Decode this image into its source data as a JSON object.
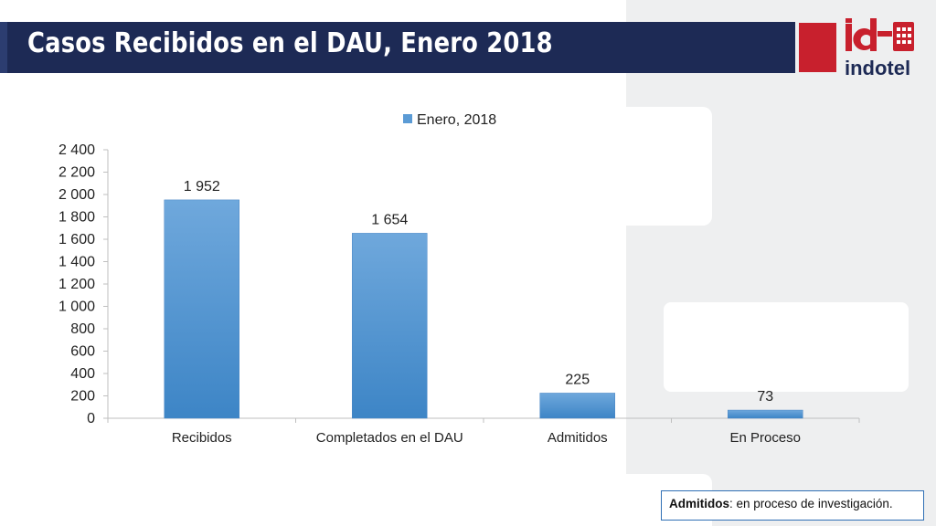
{
  "title": "Casos Recibidos en el DAU, Enero 2018",
  "logo": {
    "brand_text": "id",
    "brand_name": "indotel",
    "red": "#c8202d",
    "navy": "#1d2a55"
  },
  "footnote": {
    "term": "Admitidos",
    "definition": ": en proceso de investigación."
  },
  "chart_data": {
    "type": "bar",
    "title": "",
    "xlabel": "",
    "ylabel": "",
    "categories": [
      "Recibidos",
      "Completados en el DAU",
      "Admitidos",
      "En Proceso"
    ],
    "series": [
      {
        "name": "Enero, 2018",
        "values": [
          1952,
          1654,
          225,
          73
        ],
        "color": "#5b9bd5"
      }
    ],
    "data_labels": [
      "1 952",
      "1 654",
      "225",
      "73"
    ],
    "ylim": [
      0,
      2400
    ],
    "yticks": [
      0,
      200,
      400,
      600,
      800,
      1000,
      1200,
      1400,
      1600,
      1800,
      2000,
      2200,
      2400
    ],
    "ytick_labels": [
      "0",
      "200",
      "400",
      "600",
      "800",
      "1 000",
      "1 200",
      "1 400",
      "1 600",
      "1 800",
      "2 000",
      "2 200",
      "2 400"
    ],
    "grid": false,
    "legend_position": "top-center"
  }
}
